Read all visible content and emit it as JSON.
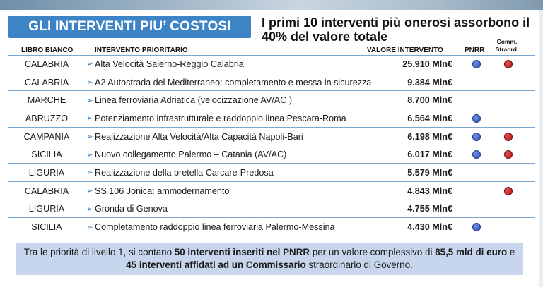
{
  "title": "GLI INTERVENTI PIU’ COSTOSI",
  "subtitle": "I primi 10 interventi più onerosi assorbono il 40% del valore totale",
  "headers": {
    "region": "LIBRO BIANCO",
    "intervention": "INTERVENTO PRIORITARIO",
    "value": "VALORE INTERVENTO",
    "pnrr": "PNRR",
    "comm_line1": "Comm.",
    "comm_line2": "Straord."
  },
  "rows": [
    {
      "region": "CALABRIA",
      "intervention": "Alta Velocità Salerno-Reggio Calabria",
      "value": "25.910 Mln€",
      "pnrr": true,
      "comm": true
    },
    {
      "region": "CALABRIA",
      "intervention": "A2 Autostrada del Mediterraneo: completamento e messa in sicurezza",
      "value": "9.384 Mln€",
      "pnrr": false,
      "comm": false
    },
    {
      "region": "MARCHE",
      "intervention": "Linea ferroviaria Adriatica (velocizzazione AV/AC )",
      "value": "8.700 Mln€",
      "pnrr": false,
      "comm": false
    },
    {
      "region": "ABRUZZO",
      "intervention": "Potenziamento infrastrutturale e raddoppio linea Pescara-Roma",
      "value": "6.564 Mln€",
      "pnrr": true,
      "comm": false
    },
    {
      "region": "CAMPANIA",
      "intervention": "Realizzazione Alta Velocità/Alta Capacità Napoli-Bari",
      "value": "6.198 Mln€",
      "pnrr": true,
      "comm": true
    },
    {
      "region": "SICILIA",
      "intervention": "Nuovo collegamento Palermo – Catania (AV/AC)",
      "value": "6.017 Mln€",
      "pnrr": true,
      "comm": true
    },
    {
      "region": "LIGURIA",
      "intervention": "Realizzazione della bretella Carcare-Predosa",
      "value": "5.579 Mln€",
      "pnrr": false,
      "comm": false
    },
    {
      "region": "CALABRIA",
      "intervention": "SS 106 Jonica: ammodernamento",
      "value": "4.843 Mln€",
      "pnrr": false,
      "comm": true
    },
    {
      "region": "LIGURIA",
      "intervention": "Gronda di Genova",
      "value": "4.755 Mln€",
      "pnrr": false,
      "comm": false
    },
    {
      "region": "SICILIA",
      "intervention": "Completamento raddoppio linea ferroviaria Palermo-Messina",
      "value": "4.430 Mln€",
      "pnrr": true,
      "comm": false
    }
  ],
  "arrow_glyph": "➢",
  "footer": {
    "t1": "Tra le priorità di livello 1, si contano ",
    "b1": "50 interventi inseriti nel PNRR",
    "t2": " per un valore complessivo di ",
    "b2": "85,5 mld di euro",
    "t3": " e ",
    "b3": "45 interventi affidati ad un Commissario",
    "t4": " straordinario di Governo."
  },
  "colors": {
    "banner": "#3d84c6",
    "pnrr_dot": "#2f50b8",
    "comm_dot": "#b01818",
    "footer_bg": "#c7d6ec",
    "rule": "#7aa6cf"
  }
}
